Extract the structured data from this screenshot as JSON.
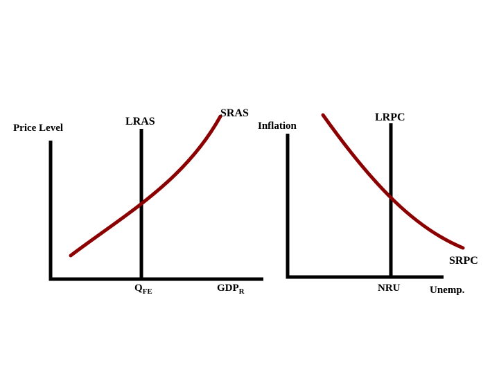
{
  "colors": {
    "axis": "#000000",
    "curve": "#8b0000",
    "background": "#ffffff"
  },
  "left_graph": {
    "y_axis_label": "Price Level",
    "vertical_line_label": "LRAS",
    "curve_label": "SRAS",
    "x_tick_label_main": "Q",
    "x_tick_label_sub": "FE",
    "x_axis_label_main": "GDP",
    "x_axis_label_sub": "R"
  },
  "right_graph": {
    "y_axis_label": "Inflation",
    "vertical_line_label": "LRPC",
    "curve_label": "SRPC",
    "x_tick_label": "NRU",
    "x_axis_label": "Unemp."
  }
}
